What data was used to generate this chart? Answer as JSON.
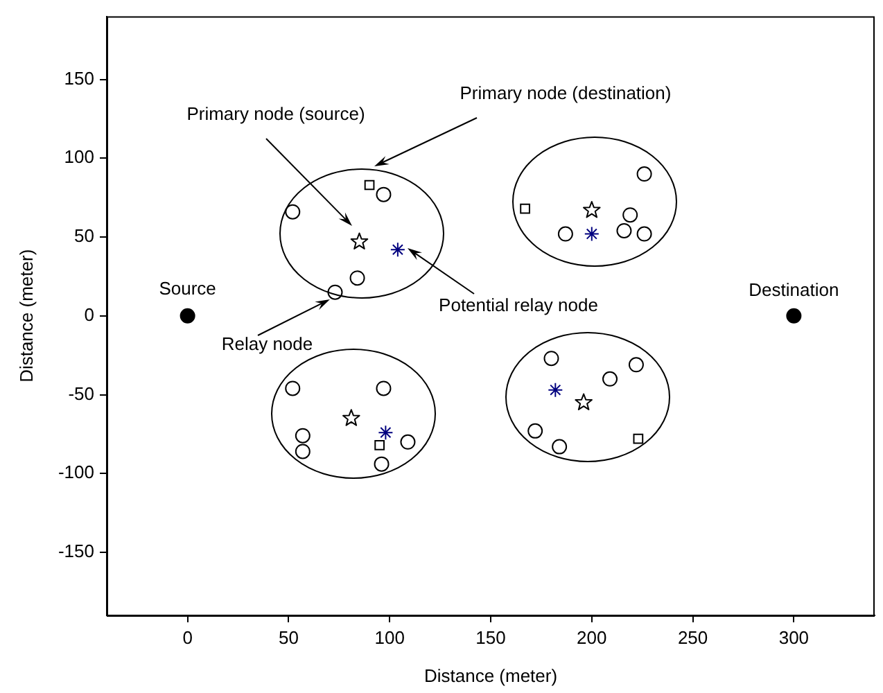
{
  "chart_data": {
    "type": "scatter",
    "xlabel": "Distance (meter)",
    "ylabel": "Distance (meter)",
    "xlim": [
      -40,
      340
    ],
    "xticks": [
      0,
      50,
      100,
      150,
      200,
      250,
      300
    ],
    "ylim": [
      -190,
      190
    ],
    "yticks": [
      -150,
      -100,
      -50,
      0,
      50,
      100,
      150
    ],
    "grid": false,
    "legend": false,
    "series": [
      {
        "type": "scatter",
        "marker": "circle",
        "color": "#000000",
        "x": [
          0,
          300
        ],
        "values": [
          0,
          0
        ]
      },
      {
        "type": "scatter",
        "marker": "circle",
        "color": "#000000",
        "x": [
          52,
          97,
          84,
          73,
          226,
          219,
          216,
          226,
          187,
          52,
          97,
          57,
          57,
          109,
          96,
          180,
          222,
          209,
          172,
          184
        ],
        "values": [
          66,
          77,
          24,
          15,
          90,
          64,
          54,
          52,
          52,
          -46,
          -46,
          -76,
          -86,
          -80,
          -94,
          -27,
          -31,
          -40,
          -73,
          -83
        ]
      },
      {
        "type": "scatter",
        "marker": "square",
        "color": "#000000",
        "x": [
          90,
          167,
          95,
          223
        ],
        "values": [
          83,
          68,
          -82,
          -78
        ]
      },
      {
        "type": "scatter",
        "marker": "star",
        "color": "#000000",
        "x": [
          85,
          200,
          81,
          196
        ],
        "values": [
          47,
          67,
          -65,
          -55
        ]
      },
      {
        "type": "scatter",
        "marker": "cross",
        "color": "#00007f",
        "x": [
          104,
          200,
          98,
          182
        ],
        "values": [
          42,
          52,
          -74,
          -47
        ]
      }
    ],
    "annotations": [
      {
        "text": "Source",
        "x": 0,
        "y": 0
      },
      {
        "text": "Destination",
        "x": 300,
        "y": 0
      },
      "Primary node (source)",
      "Primary node (destination)",
      "Potential relay node",
      {
        "text": "Relay node",
        "x": 73,
        "y": 15
      }
    ]
  }
}
